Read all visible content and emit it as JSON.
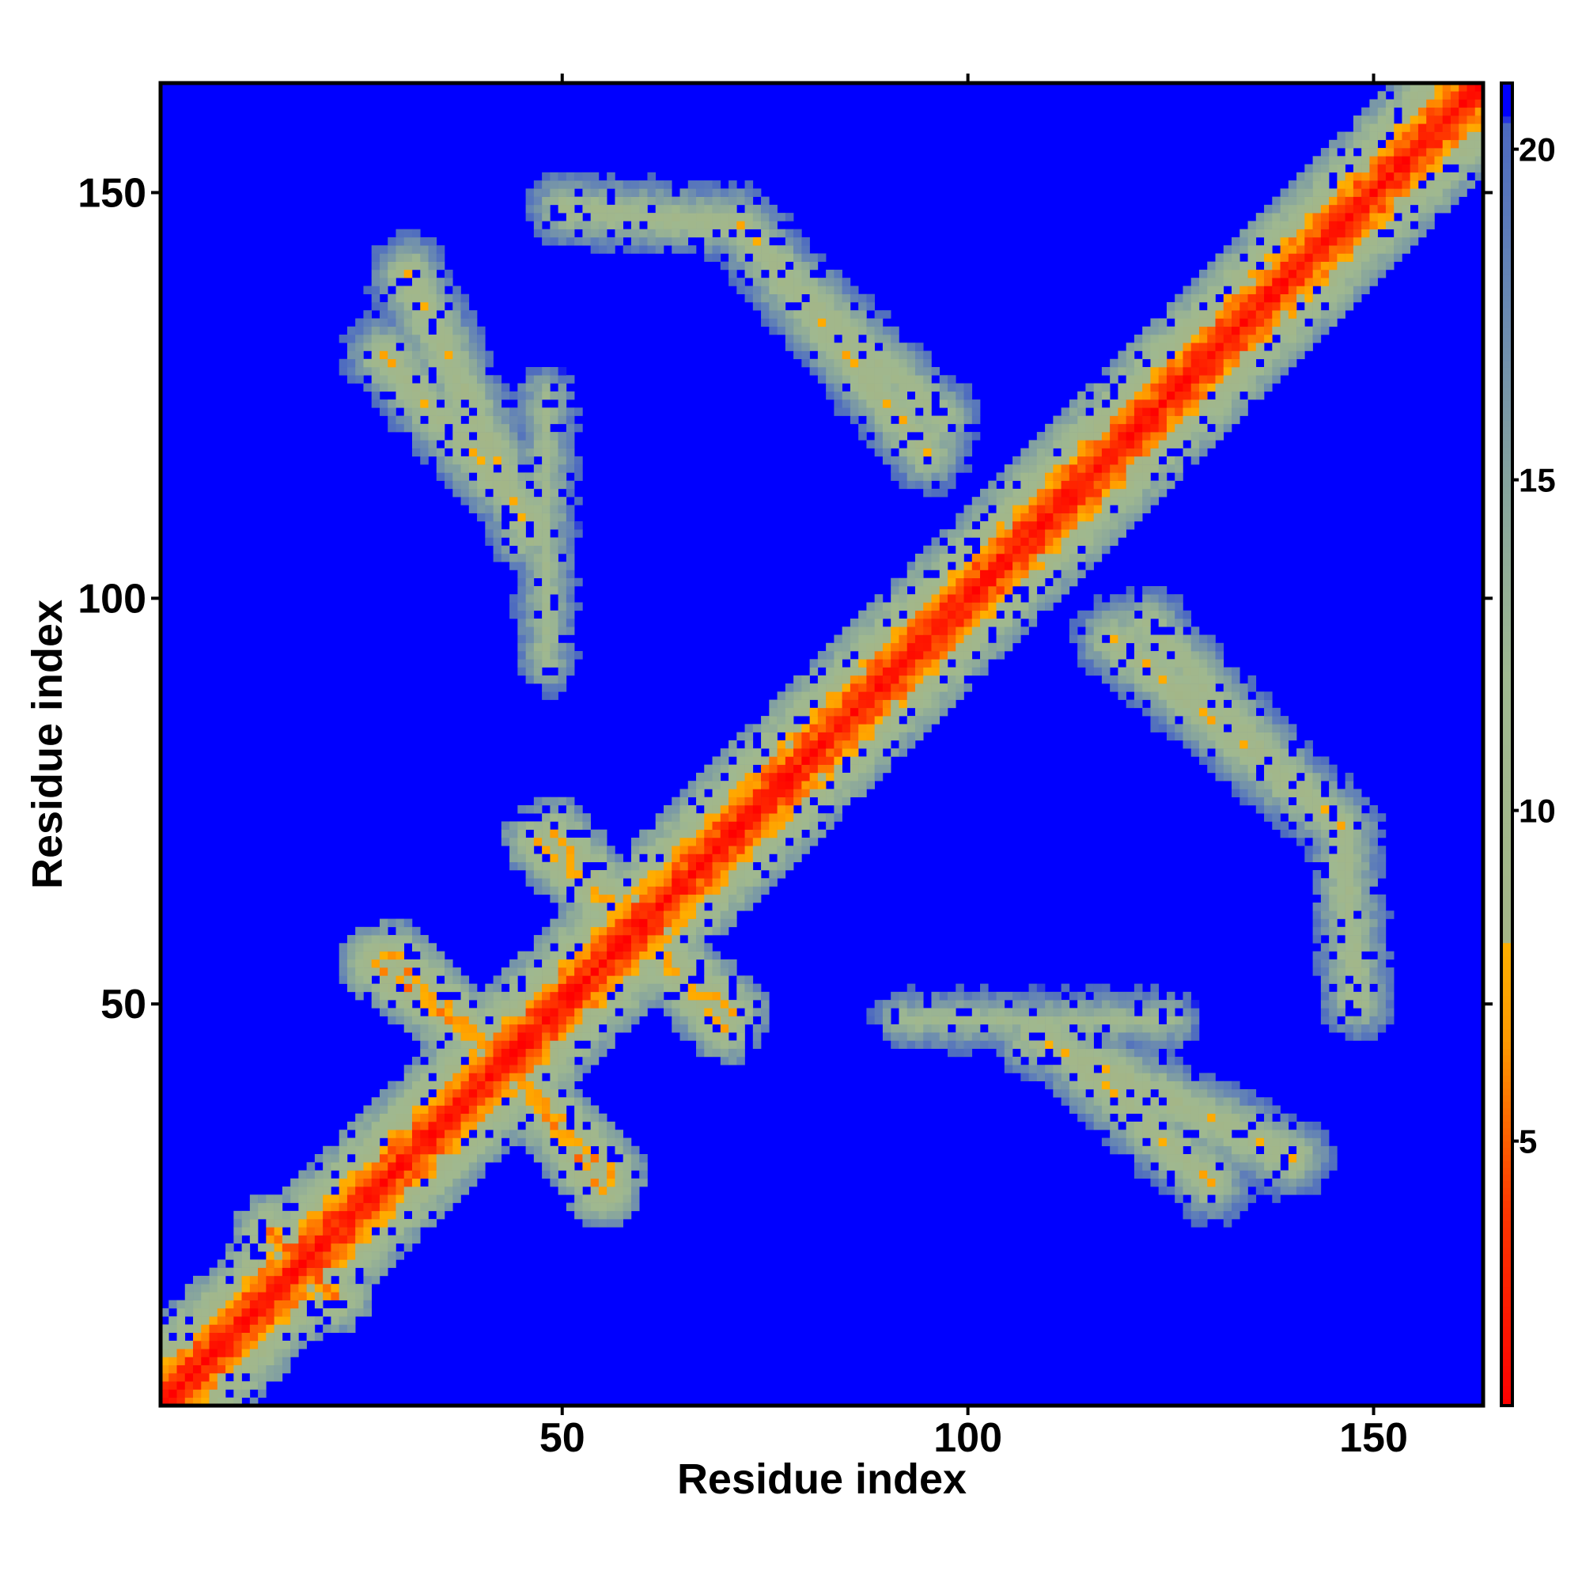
{
  "chart_data": {
    "type": "heatmap",
    "title": "",
    "xlabel": "Residue index",
    "ylabel": "Residue index",
    "xlim": [
      0.5,
      163.5
    ],
    "ylim": [
      0.5,
      163.5
    ],
    "x_ticks": [
      {
        "value": 50,
        "label": "50"
      },
      {
        "value": 100,
        "label": "100"
      },
      {
        "value": 150,
        "label": "150"
      }
    ],
    "y_ticks": [
      {
        "value": 50,
        "label": "50"
      },
      {
        "value": 100,
        "label": "100"
      },
      {
        "value": 150,
        "label": "150"
      }
    ],
    "grid": false,
    "symmetric": true,
    "value_meaning": "pairwise residue distance (capped at the maximum shown in blue)",
    "background_value": 21,
    "colorbar": {
      "position": "right",
      "range": [
        1,
        21
      ],
      "ticks": [
        {
          "value": 5,
          "label": "5"
        },
        {
          "value": 10,
          "label": "10"
        },
        {
          "value": 15,
          "label": "15"
        },
        {
          "value": 20,
          "label": "20"
        }
      ],
      "color_stops": [
        {
          "value": 1,
          "color": "#ff0000"
        },
        {
          "value": 4,
          "color": "#ff3800"
        },
        {
          "value": 6.5,
          "color": "#ff9900"
        },
        {
          "value": 8,
          "color": "#ffb000"
        },
        {
          "value": 8.01,
          "color": "#a4b687"
        },
        {
          "value": 12,
          "color": "#9fb890"
        },
        {
          "value": 15,
          "color": "#86a49e"
        },
        {
          "value": 18.5,
          "color": "#5f7fb8"
        },
        {
          "value": 20.4,
          "color": "#4c69c0"
        },
        {
          "value": 20.5,
          "color": "#0000ff"
        }
      ]
    },
    "features": [
      {
        "name": "main-diagonal",
        "kind": "diagonal",
        "from": [
          1,
          1
        ],
        "to": [
          163,
          163
        ],
        "core_value": 1.5,
        "band_halfwidth": 8
      },
      {
        "name": "helix-band-1",
        "kind": "antidiagonal",
        "from": [
          43,
          43
        ],
        "to": [
          55,
          27
        ],
        "core_value": 6.5
      },
      {
        "name": "helix-band-2",
        "kind": "antidiagonal",
        "from": [
          29,
          56
        ],
        "to": [
          43,
          43
        ],
        "core_value": 6.5
      },
      {
        "name": "helix-band-3",
        "kind": "antidiagonal",
        "from": [
          47,
          70
        ],
        "to": [
          57,
          61
        ],
        "core_value": 7
      },
      {
        "name": "helix-band-4",
        "kind": "antidiagonal",
        "from": [
          62,
          57
        ],
        "to": [
          71,
          49
        ],
        "core_value": 7
      },
      {
        "name": "helix-band-5",
        "kind": "antidiagonal",
        "from": [
          18,
          18
        ],
        "to": [
          22,
          14
        ],
        "core_value": 6
      },
      {
        "name": "contact-arc-upper-left",
        "kind": "segment",
        "from": [
          31,
          140
        ],
        "to": [
          46,
          108
        ],
        "core_value": 8
      },
      {
        "name": "contact-arc-upper-mid",
        "kind": "segment",
        "from": [
          50,
          148
        ],
        "to": [
          72,
          146
        ],
        "core_value": 9
      },
      {
        "name": "contact-arc-upper-right",
        "kind": "segment",
        "from": [
          72,
          146
        ],
        "to": [
          95,
          118
        ],
        "core_value": 8
      },
      {
        "name": "contact-arc-lower-right",
        "kind": "segment",
        "from": [
          110,
          46
        ],
        "to": [
          130,
          28
        ],
        "core_value": 8
      },
      {
        "name": "contact-arc-mid-right",
        "kind": "segment",
        "from": [
          122,
          97
        ],
        "to": [
          145,
          72
        ],
        "core_value": 9
      },
      {
        "name": "contact-arc-bottom",
        "kind": "segment",
        "from": [
          92,
          48
        ],
        "to": [
          125,
          48
        ],
        "core_value": 11
      }
    ]
  }
}
